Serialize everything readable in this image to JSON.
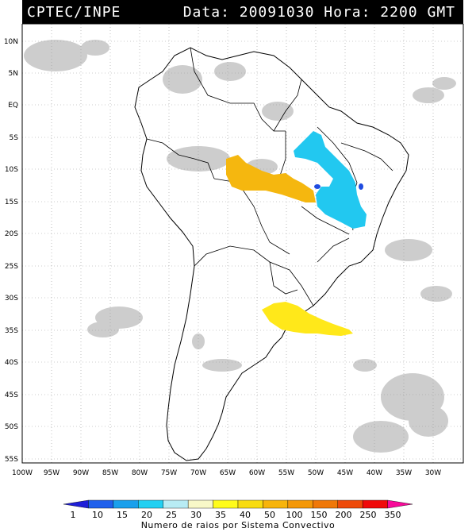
{
  "header": {
    "agency": "CPTEC/INPE",
    "datetime": "Data: 20091030 Hora: 2200 GMT"
  },
  "map": {
    "lat_labels": [
      "10N",
      "5N",
      "EQ",
      "5S",
      "10S",
      "15S",
      "20S",
      "25S",
      "30S",
      "35S",
      "40S",
      "45S",
      "50S",
      "55S"
    ],
    "lon_labels": [
      "100W",
      "95W",
      "90W",
      "85W",
      "80W",
      "75W",
      "70W",
      "65W",
      "60W",
      "55W",
      "50W",
      "45W",
      "40W",
      "35W",
      "30W"
    ],
    "lat_range": [
      -56,
      13
    ],
    "lon_range": [
      -100,
      -26
    ],
    "grid": true,
    "colors": {
      "land_outline": "#000000",
      "cloud": "#c8c8c8",
      "cyan_system": "#22c8f0",
      "orange_system": "#f5b70f",
      "yellow_system": "#ffe81a",
      "blue_cells": "#1f4ce0"
    }
  },
  "legend": {
    "title": "Numero de raios por Sistema Convectivo",
    "ticks": [
      "1",
      "10",
      "15",
      "20",
      "25",
      "30",
      "35",
      "40",
      "50",
      "100",
      "150",
      "200",
      "250",
      "350"
    ],
    "colors": [
      "#1f1fd8",
      "#1f60ec",
      "#1aa0ec",
      "#22d0f2",
      "#b8ecf4",
      "#f8f8c8",
      "#fffc1a",
      "#f8dc10",
      "#f7b40b",
      "#f49808",
      "#f07808",
      "#ee4a0a",
      "#f00a0a",
      "#f80a9a"
    ]
  }
}
